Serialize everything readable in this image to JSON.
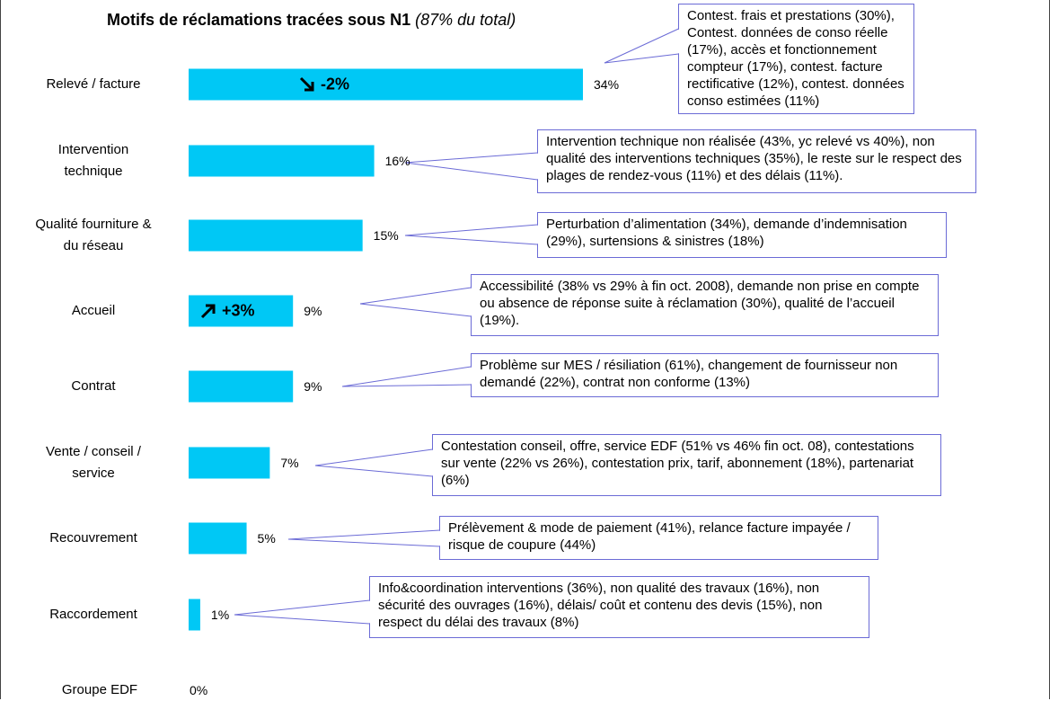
{
  "chart_data": {
    "type": "bar",
    "orientation": "horizontal",
    "title": "Motifs de réclamations tracées sous N1",
    "subtitle": "(87% du total)",
    "categories": [
      "Relevé / facture",
      "Intervention\ntechnique",
      "Qualité fourniture &\ndu réseau",
      "Accueil",
      "Contrat",
      "Vente / conseil /\nservice",
      "Recouvrement",
      "Raccordement",
      "Groupe EDF"
    ],
    "values": [
      34,
      16,
      15,
      9,
      9,
      7,
      5,
      1,
      0
    ],
    "value_labels": [
      "34%",
      "16%",
      "15%",
      "9%",
      "9%",
      "7%",
      "5%",
      "1%",
      "0%"
    ],
    "color": "#00c8f5",
    "trends": [
      -2,
      null,
      null,
      3,
      null,
      null,
      null,
      null,
      null
    ],
    "trend_labels": [
      "-2%",
      null,
      null,
      "+3%",
      null,
      null,
      null,
      null,
      null
    ],
    "notes": [
      "Contest. frais et prestations (30%), Contest. données de conso réelle (17%), accès et fonctionnement compteur (17%), contest. facture rectificative (12%), contest. données conso estimées (11%)",
      "Intervention technique non réalisée (43%, yc relevé vs 40%), non qualité des interventions techniques (35%), le reste sur le respect des plages de rendez-vous (11%) et des délais (11%).",
      "Perturbation d’alimentation (34%), demande d’indemnisation (29%), surtensions & sinistres (18%)",
      "Accessibilité (38% vs 29% à fin oct. 2008), demande non prise en compte ou absence de réponse suite à réclamation (30%), qualité de l’accueil (19%).",
      "Problème sur MES / résiliation (61%), changement de fournisseur non demandé (22%), contrat non conforme (13%)",
      "Contestation conseil, offre, service EDF (51% vs 46% fin oct. 08), contestations sur vente (22% vs 26%), contestation prix, tarif, abonnement (18%), partenariat (6%)",
      "Prélèvement & mode de paiement (41%), relance facture impayée / risque de coupure (44%)",
      "Info&coordination interventions (36%), non qualité des travaux (16%), non sécurité des ouvrages (16%), délais/ coût et contenu des devis (15%), non respect du délai des travaux (8%)"
    ]
  }
}
